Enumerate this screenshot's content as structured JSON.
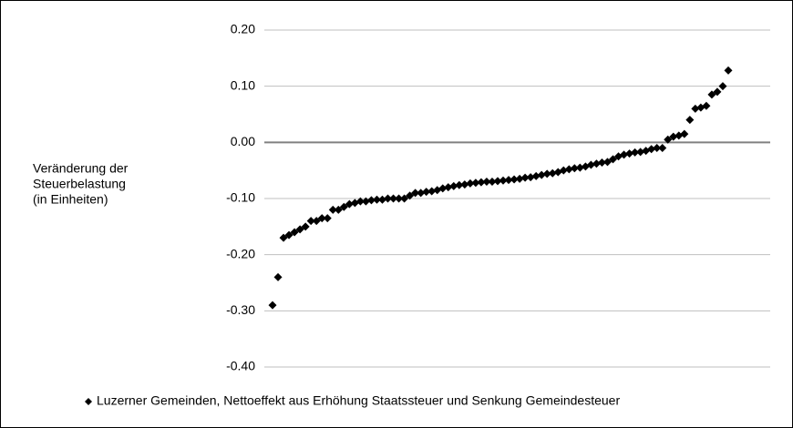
{
  "chart_data": {
    "type": "scatter",
    "y_label": [
      "Veränderung der",
      "Steuerbelastung",
      "(in Einheiten)"
    ],
    "ylim": [
      -0.4,
      0.2
    ],
    "yticks": [
      {
        "value": 0.2,
        "label": "0.20"
      },
      {
        "value": 0.1,
        "label": "0.10"
      },
      {
        "value": 0,
        "label": "0.00"
      },
      {
        "value": -0.1,
        "label": "-0.10"
      },
      {
        "value": -0.2,
        "label": "-0.20"
      },
      {
        "value": -0.3,
        "label": "-0.30"
      },
      {
        "value": -0.4,
        "label": "-0.40"
      }
    ],
    "grid": true,
    "legend": "bottom",
    "series": [
      {
        "name": "Luzerner Gemeinden, Nettoeffekt aus Erhöhung Staatssteuer und Senkung Gemeindesteuer",
        "color": "#000000",
        "values": [
          -0.29,
          -0.24,
          -0.17,
          -0.165,
          -0.16,
          -0.155,
          -0.15,
          -0.14,
          -0.14,
          -0.135,
          -0.135,
          -0.12,
          -0.12,
          -0.115,
          -0.11,
          -0.108,
          -0.105,
          -0.105,
          -0.103,
          -0.102,
          -0.102,
          -0.1,
          -0.1,
          -0.1,
          -0.1,
          -0.095,
          -0.09,
          -0.09,
          -0.088,
          -0.087,
          -0.085,
          -0.082,
          -0.08,
          -0.078,
          -0.076,
          -0.075,
          -0.073,
          -0.072,
          -0.071,
          -0.07,
          -0.07,
          -0.069,
          -0.068,
          -0.067,
          -0.066,
          -0.065,
          -0.063,
          -0.062,
          -0.06,
          -0.058,
          -0.056,
          -0.055,
          -0.053,
          -0.05,
          -0.048,
          -0.046,
          -0.045,
          -0.043,
          -0.04,
          -0.038,
          -0.036,
          -0.035,
          -0.03,
          -0.025,
          -0.022,
          -0.02,
          -0.018,
          -0.017,
          -0.015,
          -0.012,
          -0.01,
          -0.01,
          0.005,
          0.01,
          0.012,
          0.015,
          0.04,
          0.06,
          0.062,
          0.065,
          0.085,
          0.09,
          0.1,
          0.128
        ]
      }
    ]
  }
}
